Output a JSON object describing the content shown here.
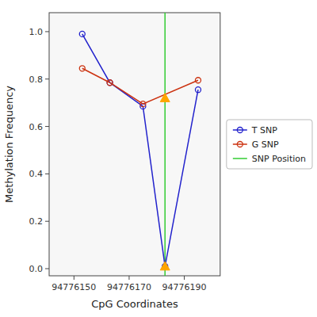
{
  "chart_data": {
    "type": "line",
    "x_label": "CpG Coordinates",
    "y_label": "Methylation Frequency",
    "series": [
      {
        "name": "T SNP",
        "color": "#2222CC",
        "marker": "circle",
        "x": [
          94776153,
          94776163,
          94776175,
          94776183,
          94776195
        ],
        "values": [
          0.99,
          0.785,
          0.685,
          0.01,
          0.755
        ]
      },
      {
        "name": "G SNP",
        "color": "#CC3311",
        "marker": "circle",
        "x": [
          94776153,
          94776163,
          94776175,
          94776195
        ],
        "values": [
          0.845,
          0.785,
          0.695,
          0.795
        ]
      }
    ],
    "vlines": [
      {
        "name": "SNP Position",
        "x": 94776183,
        "color": "#33CC33"
      }
    ],
    "points": [
      {
        "x": 94776183,
        "y": 0.01,
        "color": "#FFA500",
        "marker": "triangle"
      },
      {
        "x": 94776183,
        "y": 0.72,
        "color": "#FFA500",
        "marker": "triangle"
      }
    ],
    "xlim": [
      94776141,
      94776203
    ],
    "ylim": [
      -0.03,
      1.08
    ],
    "xticks": [
      94776150,
      94776170,
      94776190
    ],
    "yticks": [
      {
        "value": 0,
        "label": "0.0"
      },
      0.2,
      0.4,
      0.6,
      0.8,
      {
        "value": 1,
        "label": "1.0"
      }
    ],
    "grid": false,
    "legend": "right"
  }
}
